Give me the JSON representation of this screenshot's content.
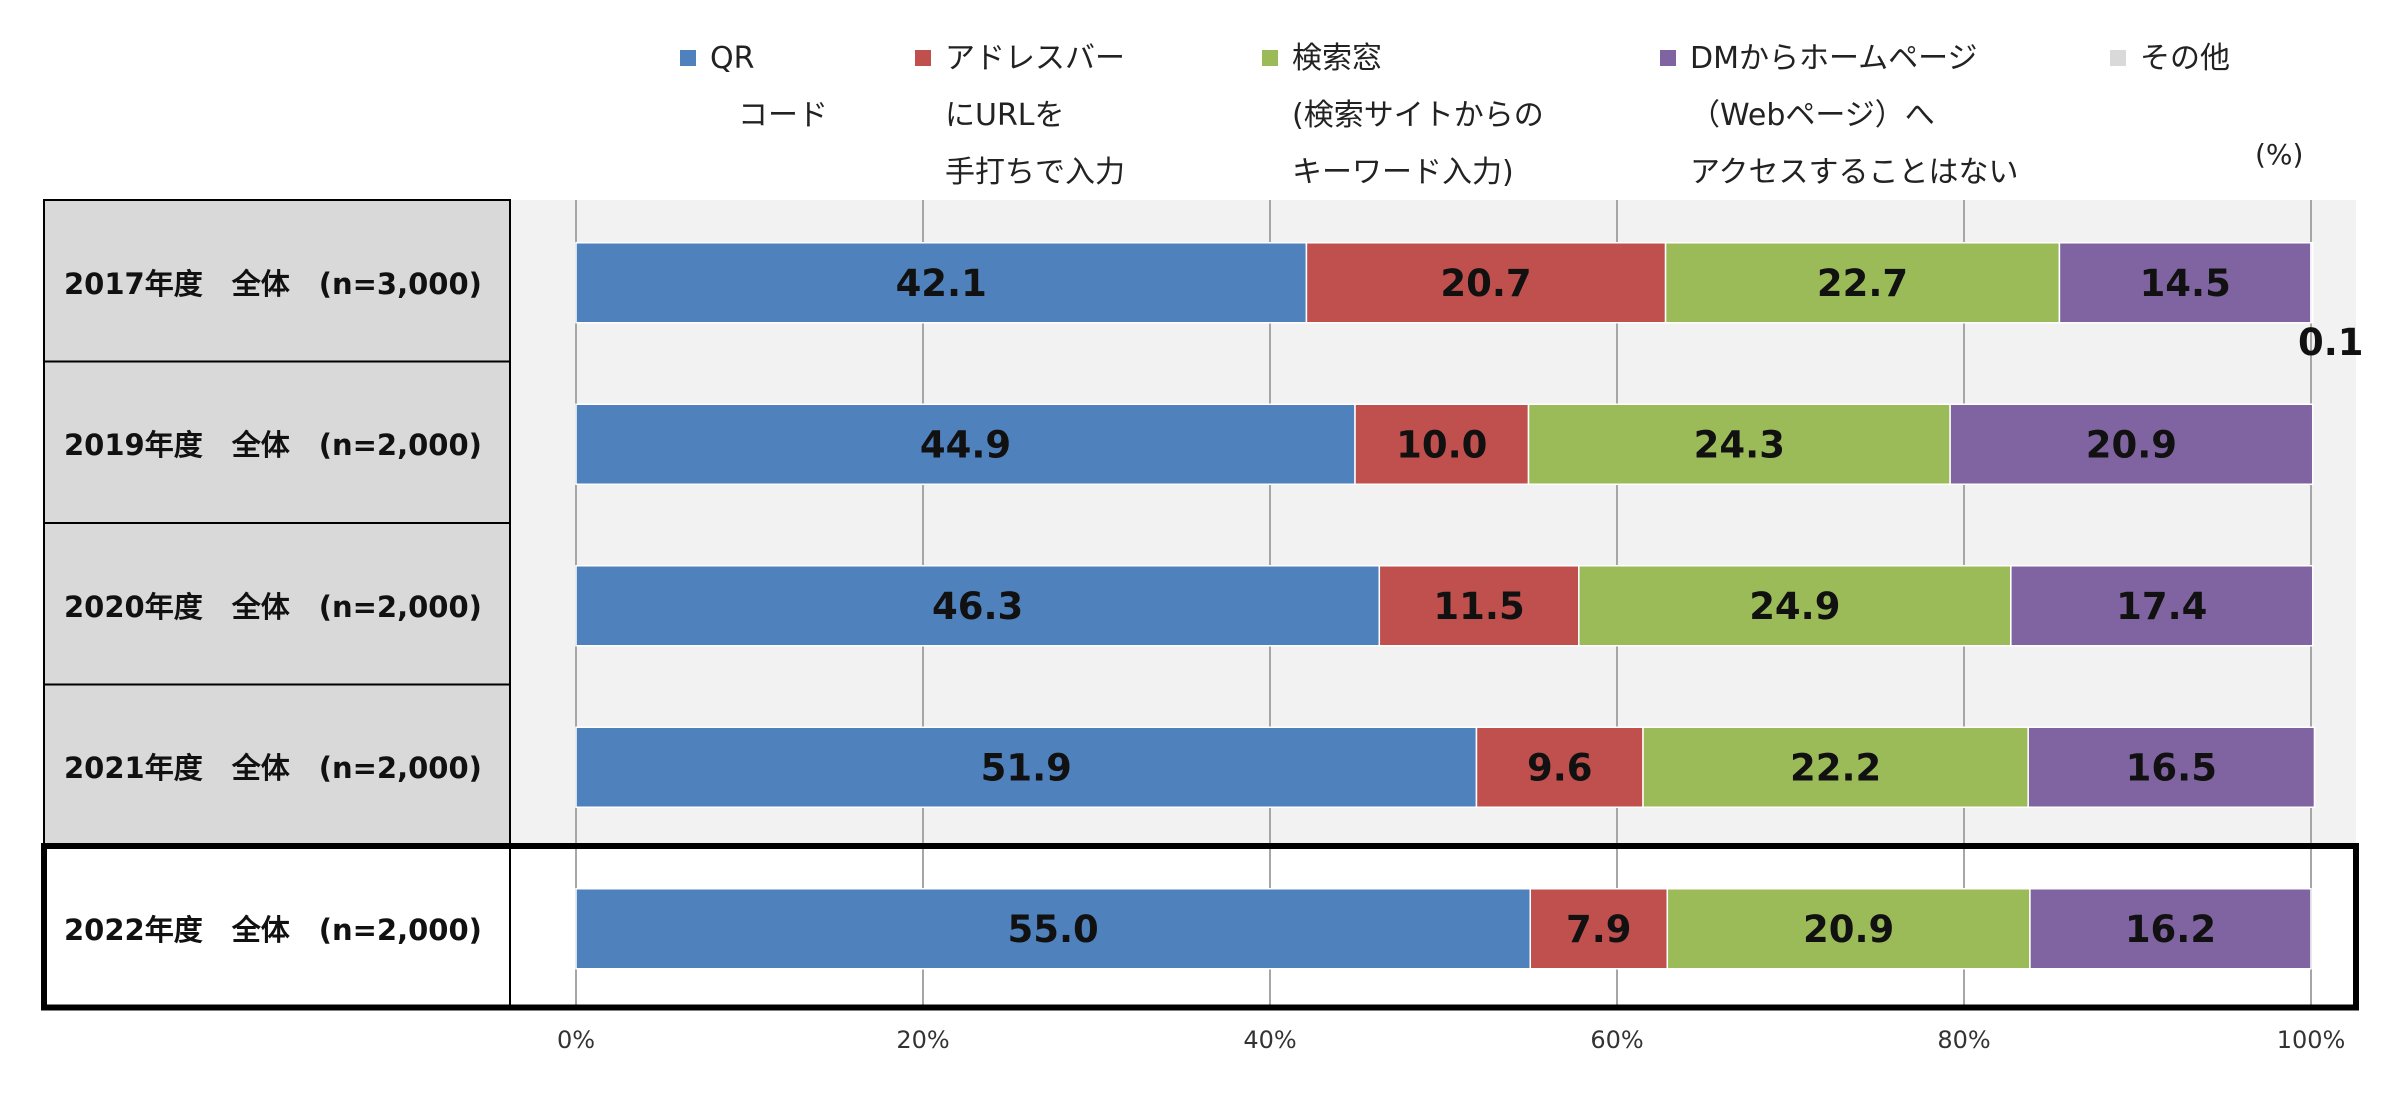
{
  "chart_data": {
    "type": "bar",
    "orientation": "horizontal",
    "stacked": true,
    "unit_label": "(%)",
    "categories": [
      "2017年度　全体　(n=3,000)",
      "2019年度　全体　(n=2,000)",
      "2020年度　全体　(n=2,000)",
      "2021年度　全体　(n=2,000)",
      "2022年度　全体　(n=2,000)"
    ],
    "series": [
      {
        "name": "QRコード",
        "legend_lines": [
          "QR",
          "コード"
        ],
        "color": "#4f81bd",
        "values": [
          42.1,
          44.9,
          46.3,
          51.9,
          55.0
        ],
        "labels": [
          "42.1",
          "44.9",
          "46.3",
          "51.9",
          "55.0"
        ]
      },
      {
        "name": "アドレスバーにURLを手打ちで入力",
        "legend_lines": [
          "アドレスバー",
          "にURLを",
          "手打ちで入力"
        ],
        "color": "#c0504d",
        "values": [
          20.7,
          10.0,
          11.5,
          9.6,
          7.9
        ],
        "labels": [
          "20.7",
          "10.0",
          "11.5",
          "9.6",
          "7.9"
        ]
      },
      {
        "name": "検索窓(検索サイトからのキーワード入力)",
        "legend_lines": [
          "検索窓",
          "(検索サイトからの",
          "キーワード入力)"
        ],
        "color": "#9bbb59",
        "values": [
          22.7,
          24.3,
          24.9,
          22.2,
          20.9
        ],
        "labels": [
          "22.7",
          "24.3",
          "24.9",
          "22.2",
          "20.9"
        ]
      },
      {
        "name": "DMからホームページ(Webページ)へアクセスすることはない",
        "legend_lines": [
          "DMからホームページ",
          "（Webページ）へ",
          "アクセスすることはない"
        ],
        "color": "#8064a2",
        "values": [
          14.5,
          20.9,
          17.4,
          16.5,
          16.2
        ],
        "labels": [
          "14.5",
          "20.9",
          "17.4",
          "16.5",
          "16.2"
        ]
      },
      {
        "name": "その他",
        "legend_lines": [
          "その他"
        ],
        "color": "#d9d9d9",
        "values": [
          0.1,
          0,
          0,
          0,
          0
        ],
        "labels": [
          "0.1",
          "",
          "",
          "",
          ""
        ]
      }
    ],
    "x_ticks": [
      "0%",
      "20%",
      "40%",
      "60%",
      "80%",
      "100%"
    ],
    "xlim": [
      0,
      100
    ],
    "grid": true,
    "legend_position": "top",
    "highlighted_category": "2022年度　全体　(n=2,000)"
  }
}
